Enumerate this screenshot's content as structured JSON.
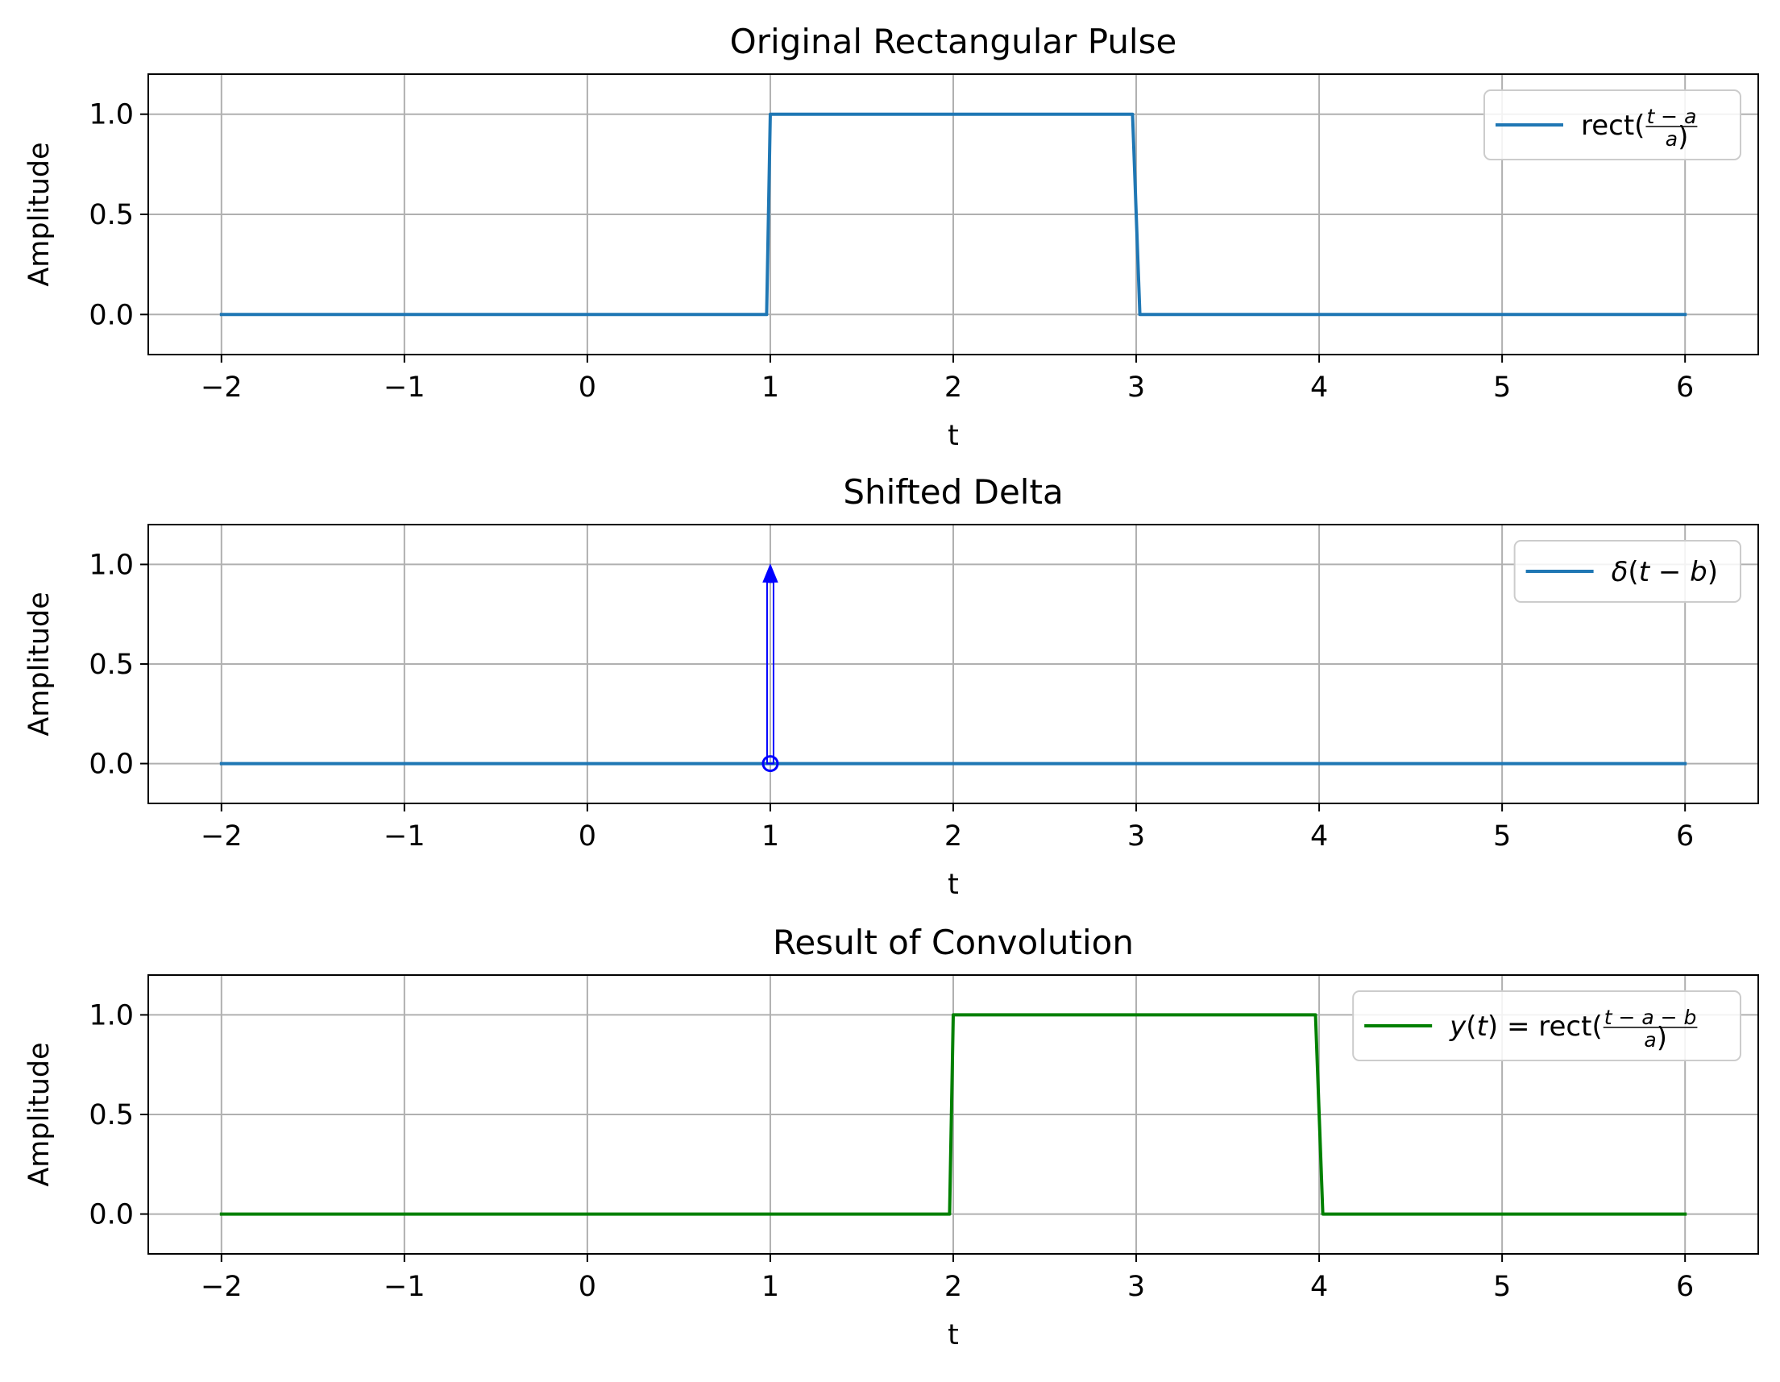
{
  "chart_data": [
    {
      "type": "line",
      "title": "Original Rectangular Pulse",
      "xlabel": "t",
      "ylabel": "Amplitude",
      "xlim": [
        -2.4,
        6.4
      ],
      "ylim": [
        -0.2,
        1.2
      ],
      "xticks": [
        -2,
        -1,
        0,
        1,
        2,
        3,
        4,
        5,
        6
      ],
      "xtick_labels": [
        "−2",
        "−1",
        "0",
        "1",
        "2",
        "3",
        "4",
        "5",
        "6"
      ],
      "yticks": [
        0.0,
        0.5,
        1.0
      ],
      "ytick_labels": [
        "0.0",
        "0.5",
        "1.0"
      ],
      "grid": true,
      "legend_position": "top-right",
      "series": [
        {
          "name": "rect((t−a)/a)",
          "color": "#1f77b4",
          "x": [
            -2,
            0.98,
            1.0,
            2.98,
            3.02,
            6
          ],
          "y": [
            0,
            0,
            1,
            1,
            0,
            0
          ]
        }
      ],
      "legend": [
        {
          "series": 0,
          "parts": [
            {
              "t": "rect("
            },
            {
              "frac": {
                "num": "t − a",
                "den": "a"
              }
            },
            {
              "t": ")"
            }
          ]
        }
      ]
    },
    {
      "type": "line",
      "title": "Shifted Delta",
      "xlabel": "t",
      "ylabel": "Amplitude",
      "xlim": [
        -2.4,
        6.4
      ],
      "ylim": [
        -0.2,
        1.2
      ],
      "xticks": [
        -2,
        -1,
        0,
        1,
        2,
        3,
        4,
        5,
        6
      ],
      "xtick_labels": [
        "−2",
        "−1",
        "0",
        "1",
        "2",
        "3",
        "4",
        "5",
        "6"
      ],
      "yticks": [
        0.0,
        0.5,
        1.0
      ],
      "ytick_labels": [
        "0.0",
        "0.5",
        "1.0"
      ],
      "grid": true,
      "legend_position": "top-right",
      "series": [
        {
          "name": "δ(t − b)",
          "color": "#1f77b4",
          "x": [
            -2,
            6
          ],
          "y": [
            0,
            0
          ]
        }
      ],
      "annotations": [
        {
          "kind": "arrow",
          "x": 1,
          "y0": 0,
          "y1": 1,
          "color": "#0000ff"
        },
        {
          "kind": "marker",
          "shape": "open-circle",
          "x": 1,
          "y": 0,
          "color": "#0000ff"
        }
      ],
      "legend": [
        {
          "series": 0,
          "parts": [
            {
              "i": "δ"
            },
            {
              "t": "("
            },
            {
              "i": "t"
            },
            {
              "t": " − "
            },
            {
              "i": "b"
            },
            {
              "t": ")"
            }
          ]
        }
      ]
    },
    {
      "type": "line",
      "title": "Result of Convolution",
      "xlabel": "t",
      "ylabel": "Amplitude",
      "xlim": [
        -2.4,
        6.4
      ],
      "ylim": [
        -0.2,
        1.2
      ],
      "xticks": [
        -2,
        -1,
        0,
        1,
        2,
        3,
        4,
        5,
        6
      ],
      "xtick_labels": [
        "−2",
        "−1",
        "0",
        "1",
        "2",
        "3",
        "4",
        "5",
        "6"
      ],
      "yticks": [
        0.0,
        0.5,
        1.0
      ],
      "ytick_labels": [
        "0.0",
        "0.5",
        "1.0"
      ],
      "grid": true,
      "legend_position": "top-right",
      "series": [
        {
          "name": "y(t) = rect((t−a−b)/a)",
          "color": "#008000",
          "x": [
            -2,
            1.98,
            2.0,
            3.98,
            4.02,
            6
          ],
          "y": [
            0,
            0,
            1,
            1,
            0,
            0
          ]
        }
      ],
      "legend": [
        {
          "series": 0,
          "parts": [
            {
              "i": "y"
            },
            {
              "t": "("
            },
            {
              "i": "t"
            },
            {
              "t": ") = rect("
            },
            {
              "frac": {
                "num": "t − a − b",
                "den": "a"
              }
            },
            {
              "t": ")"
            }
          ]
        }
      ]
    }
  ]
}
